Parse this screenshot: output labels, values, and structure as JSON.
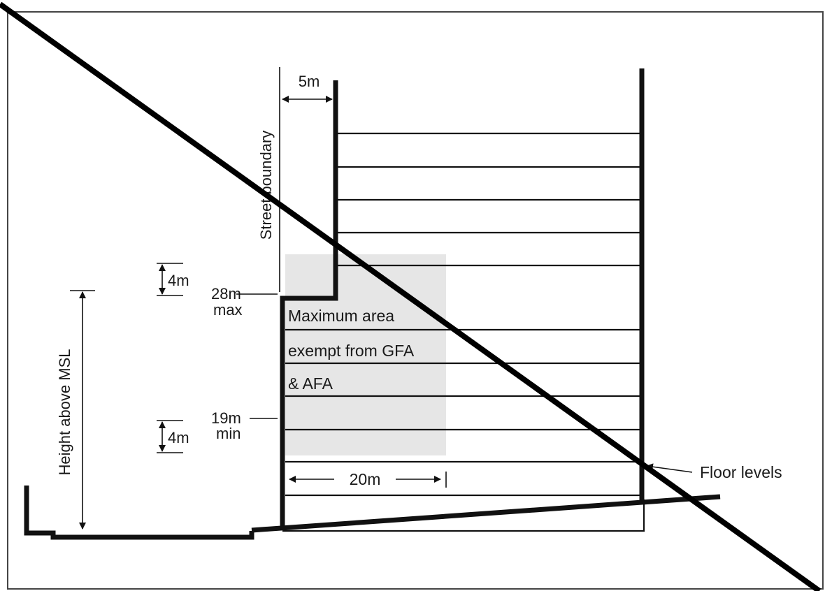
{
  "labels": {
    "setback": "5m",
    "street_boundary": "Street boundary",
    "upper_step": "4m",
    "height_max_value": "28m",
    "height_max_word": "max",
    "lower_step": "4m",
    "height_min_value": "19m",
    "height_min_word": "min",
    "height_above_msl": "Height above MSL",
    "exempt_line1": "Maximum area",
    "exempt_line2": "exempt from GFA",
    "exempt_line3": "& AFA",
    "depth": "20m",
    "floor_levels": "Floor levels"
  },
  "colors": {
    "line": "#111111",
    "exempt_area": "#e6e6e6",
    "background": "#ffffff"
  }
}
